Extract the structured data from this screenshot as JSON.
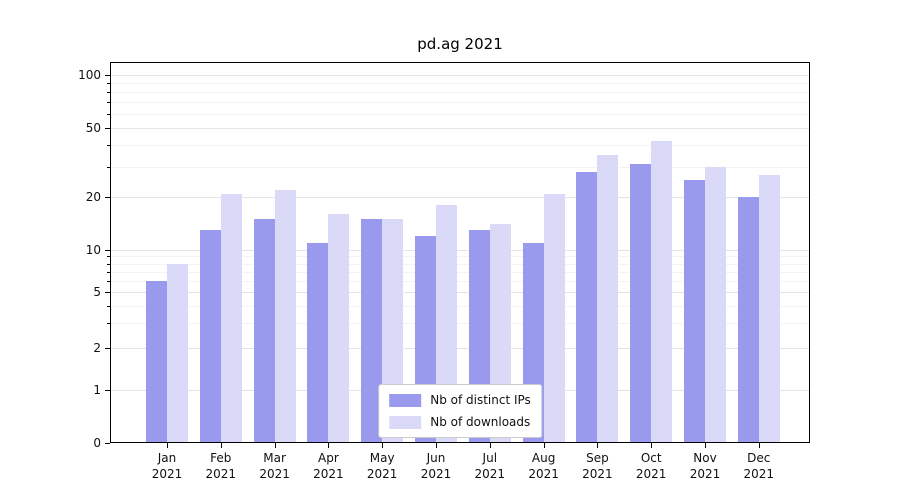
{
  "chart_data": {
    "type": "bar",
    "title": "pd.ag 2021",
    "x_year_label": "2021",
    "categories": [
      "Jan",
      "Feb",
      "Mar",
      "Apr",
      "May",
      "Jun",
      "Jul",
      "Aug",
      "Sep",
      "Oct",
      "Nov",
      "Dec"
    ],
    "series": [
      {
        "name": "Nb of distinct IPs",
        "color": "#9999ee",
        "values": [
          6,
          13,
          15,
          11,
          15,
          12,
          13,
          11,
          28,
          31,
          25,
          20
        ]
      },
      {
        "name": "Nb of downloads",
        "color": "#dadaf8",
        "values": [
          8,
          21,
          22,
          16,
          15,
          18,
          14,
          21,
          35,
          42,
          30,
          27
        ]
      }
    ],
    "yscale": "symlog",
    "y_ticks": [
      0,
      1,
      2,
      5,
      10,
      20,
      50,
      100
    ],
    "y_minor_ticks": [
      3,
      4,
      6,
      7,
      8,
      9,
      30,
      40,
      60,
      70,
      80,
      90
    ],
    "ylim": [
      0,
      120
    ],
    "grid": "horizontal-major-and-minor",
    "legend_position": "lower center"
  }
}
